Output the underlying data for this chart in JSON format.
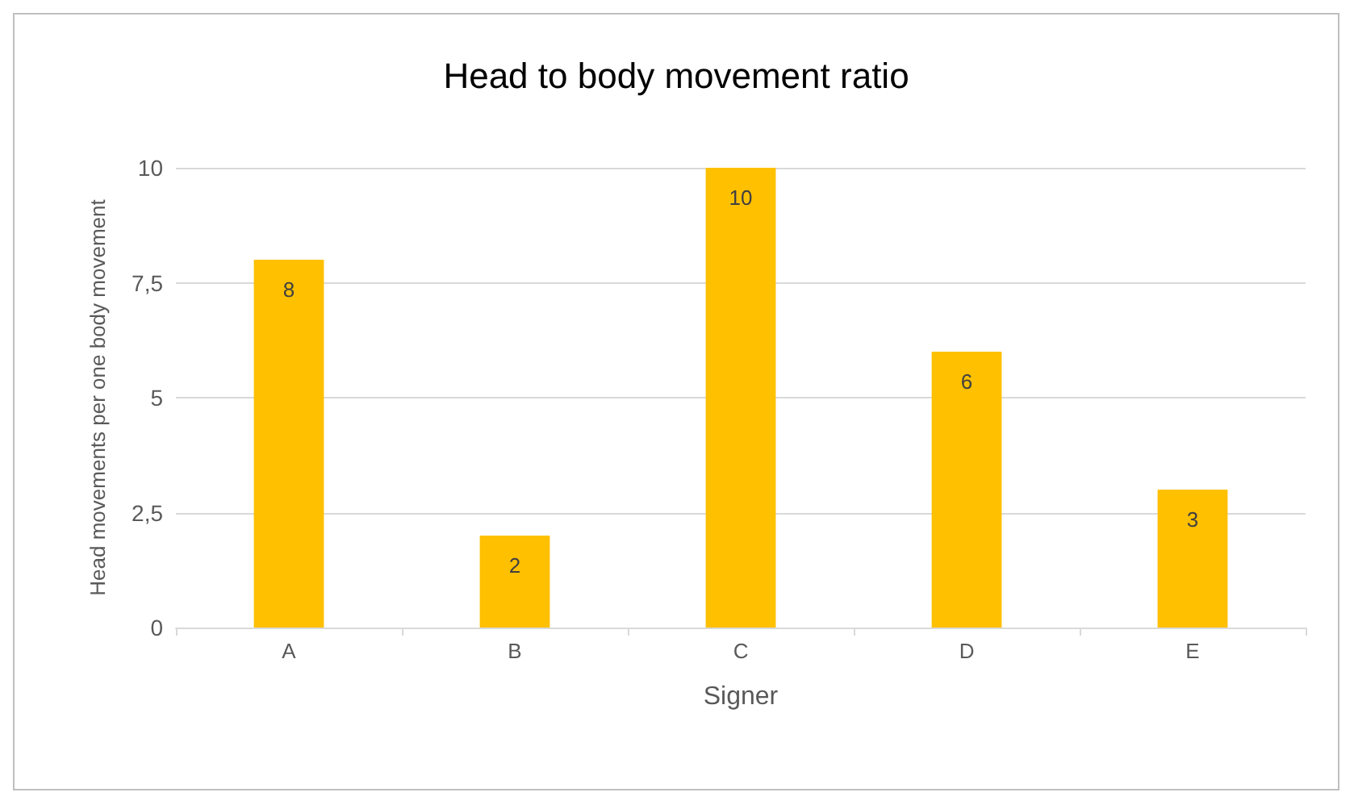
{
  "chart_data": {
    "type": "bar",
    "title": "Head to body movement ratio",
    "xlabel": "Signer",
    "ylabel": "Head movements per one body movement",
    "categories": [
      "A",
      "B",
      "C",
      "D",
      "E"
    ],
    "values": [
      8,
      2,
      10,
      6,
      3
    ],
    "color": "#ffc000",
    "ylim": [
      0,
      10
    ],
    "yticks": [
      0,
      {
        "value": 2.5,
        "label": "2,5"
      },
      5,
      {
        "value": 7.5,
        "label": "7,5"
      },
      10
    ],
    "grid": "y",
    "data_labels": true
  }
}
